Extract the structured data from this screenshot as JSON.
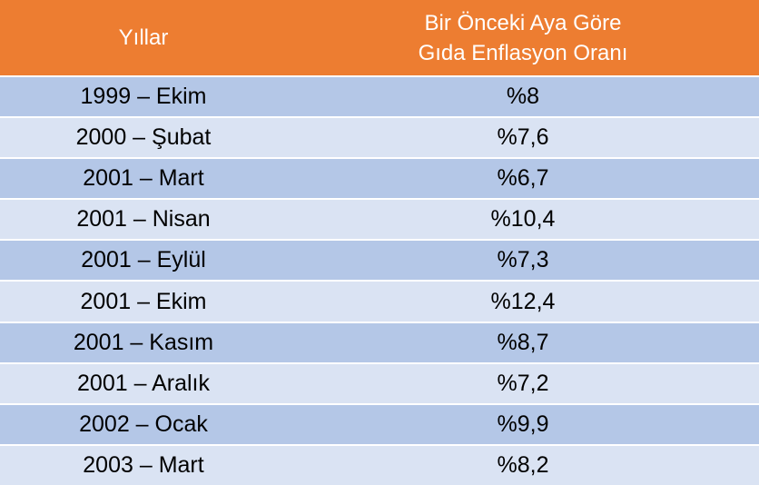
{
  "table": {
    "header": [
      "Yıllar",
      [
        "Bir Önceki Aya Göre",
        "Gıda Enflasyon Oranı"
      ]
    ],
    "rows": [
      [
        "1999 – Ekim",
        "%8"
      ],
      [
        "2000 – Şubat",
        "%7,6"
      ],
      [
        "2001 – Mart",
        "%6,7"
      ],
      [
        "2001 – Nisan",
        "%10,4"
      ],
      [
        "2001 – Eylül",
        "%7,3"
      ],
      [
        "2001 – Ekim",
        "%12,4"
      ],
      [
        "2001 – Kasım",
        "%8,7"
      ],
      [
        "2001 – Aralık",
        "%7,2"
      ],
      [
        "2002 – Ocak",
        "%9,9"
      ],
      [
        "2003 – Mart",
        "%8,2"
      ]
    ]
  }
}
